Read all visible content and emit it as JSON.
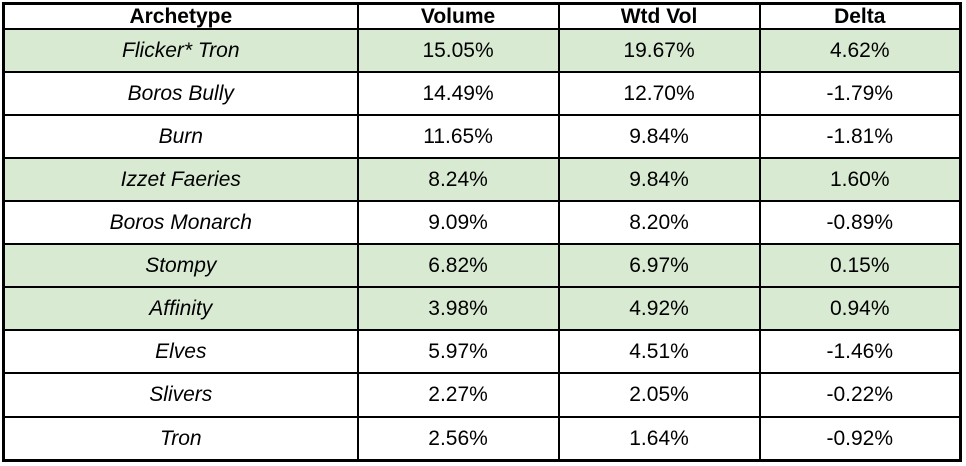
{
  "table": {
    "headers": [
      "Archetype",
      "Volume",
      "Wtd Vol",
      "Delta"
    ],
    "rows": [
      {
        "archetype": "Flicker* Tron",
        "volume": "15.05%",
        "wtd_vol": "19.67%",
        "delta": "4.62%",
        "highlighted": true
      },
      {
        "archetype": "Boros Bully",
        "volume": "14.49%",
        "wtd_vol": "12.70%",
        "delta": "-1.79%",
        "highlighted": false
      },
      {
        "archetype": "Burn",
        "volume": "11.65%",
        "wtd_vol": "9.84%",
        "delta": "-1.81%",
        "highlighted": false
      },
      {
        "archetype": "Izzet Faeries",
        "volume": "8.24%",
        "wtd_vol": "9.84%",
        "delta": "1.60%",
        "highlighted": true
      },
      {
        "archetype": "Boros Monarch",
        "volume": "9.09%",
        "wtd_vol": "8.20%",
        "delta": "-0.89%",
        "highlighted": false
      },
      {
        "archetype": "Stompy",
        "volume": "6.82%",
        "wtd_vol": "6.97%",
        "delta": "0.15%",
        "highlighted": true
      },
      {
        "archetype": "Affinity",
        "volume": "3.98%",
        "wtd_vol": "4.92%",
        "delta": "0.94%",
        "highlighted": true
      },
      {
        "archetype": "Elves",
        "volume": "5.97%",
        "wtd_vol": "4.51%",
        "delta": "-1.46%",
        "highlighted": false
      },
      {
        "archetype": "Slivers",
        "volume": "2.27%",
        "wtd_vol": "2.05%",
        "delta": "-0.22%",
        "highlighted": false
      },
      {
        "archetype": "Tron",
        "volume": "2.56%",
        "wtd_vol": "1.64%",
        "delta": "-0.92%",
        "highlighted": false
      }
    ]
  },
  "colors": {
    "highlight_green": "#d9ead3",
    "border_black": "#000000",
    "row_white": "#ffffff"
  },
  "chart_data": {
    "type": "table",
    "title": "",
    "columns": [
      "Archetype",
      "Volume",
      "Wtd Vol",
      "Delta"
    ],
    "rows": [
      [
        "Flicker* Tron",
        "15.05%",
        "19.67%",
        "4.62%"
      ],
      [
        "Boros Bully",
        "14.49%",
        "12.70%",
        "-1.79%"
      ],
      [
        "Burn",
        "11.65%",
        "9.84%",
        "-1.81%"
      ],
      [
        "Izzet Faeries",
        "8.24%",
        "9.84%",
        "1.60%"
      ],
      [
        "Boros Monarch",
        "9.09%",
        "8.20%",
        "-0.89%"
      ],
      [
        "Stompy",
        "6.82%",
        "6.97%",
        "0.15%"
      ],
      [
        "Affinity",
        "3.98%",
        "4.92%",
        "0.94%"
      ],
      [
        "Elves",
        "5.97%",
        "4.51%",
        "-1.46%"
      ],
      [
        "Slivers",
        "2.27%",
        "2.05%",
        "-0.22%"
      ],
      [
        "Tron",
        "2.56%",
        "1.64%",
        "-0.92%"
      ]
    ],
    "numeric_rows": {
      "volume": [
        15.05,
        14.49,
        11.65,
        8.24,
        9.09,
        6.82,
        3.98,
        5.97,
        2.27,
        2.56
      ],
      "wtd_vol": [
        19.67,
        12.7,
        9.84,
        9.84,
        8.2,
        6.97,
        4.92,
        4.51,
        2.05,
        1.64
      ],
      "delta": [
        4.62,
        -1.79,
        -1.81,
        1.6,
        -0.89,
        0.15,
        0.94,
        -1.46,
        -0.22,
        -0.92
      ]
    },
    "highlighted_row_indices": [
      0,
      3,
      5,
      6
    ],
    "layout_hints": {
      "header_bold": true,
      "archetype_italic": true,
      "text_align": "center",
      "grid": true
    }
  }
}
